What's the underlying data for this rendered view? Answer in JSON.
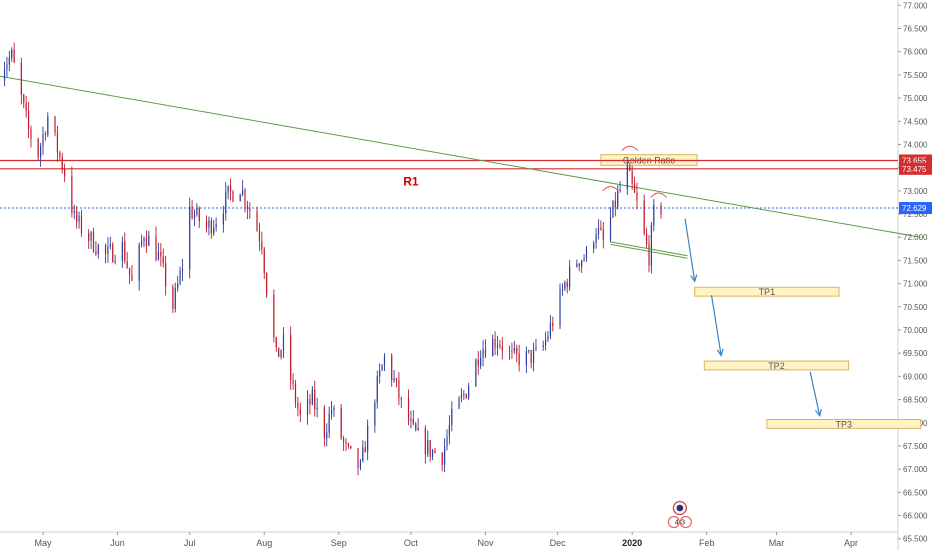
{
  "chart_data": {
    "type": "candlestick",
    "title": "",
    "xlabel": "",
    "ylabel": "",
    "ylim": [
      65.3,
      77.05
    ],
    "grid": false,
    "x_ticks": [
      {
        "label": "May",
        "date": "2019-05-01"
      },
      {
        "label": "Jun",
        "date": "2019-06-01"
      },
      {
        "label": "Jul",
        "date": "2019-07-01"
      },
      {
        "label": "Aug",
        "date": "2019-08-01"
      },
      {
        "label": "Sep",
        "date": "2019-09-01"
      },
      {
        "label": "Oct",
        "date": "2019-10-01"
      },
      {
        "label": "Nov",
        "date": "2019-11-01"
      },
      {
        "label": "Dec",
        "date": "2019-12-01"
      },
      {
        "label": "2020",
        "date": "2020-01-01"
      },
      {
        "label": "Feb",
        "date": "2020-02-01"
      },
      {
        "label": "Mar",
        "date": "2020-03-01"
      },
      {
        "label": "Apr",
        "date": "2020-04-01"
      }
    ],
    "y_ticks": [
      "65.500",
      "66.000",
      "66.500",
      "67.000",
      "67.500",
      "68.000",
      "68.500",
      "69.000",
      "69.500",
      "70.000",
      "70.500",
      "71.000",
      "71.500",
      "72.000",
      "72.500",
      "73.000",
      "73.500",
      "74.000",
      "74.500",
      "75.000",
      "75.500",
      "76.000",
      "76.500",
      "77.000"
    ],
    "price_path": [
      [
        "2019-04-12",
        75.6
      ],
      [
        "2019-04-18",
        75.9
      ],
      [
        "2019-04-25",
        74.3
      ],
      [
        "2019-04-29",
        73.8
      ],
      [
        "2019-05-03",
        74.6
      ],
      [
        "2019-05-07",
        73.9
      ],
      [
        "2019-05-10",
        73.4
      ],
      [
        "2019-05-14",
        72.4
      ],
      [
        "2019-05-20",
        72.0
      ],
      [
        "2019-05-27",
        71.6
      ],
      [
        "2019-06-03",
        71.8
      ],
      [
        "2019-06-07",
        71.0
      ],
      [
        "2019-06-12",
        72.1
      ],
      [
        "2019-06-18",
        71.6
      ],
      [
        "2019-06-24",
        70.5
      ],
      [
        "2019-06-28",
        71.4
      ],
      [
        "2019-07-01",
        72.6
      ],
      [
        "2019-07-08",
        72.2
      ],
      [
        "2019-07-12",
        72.4
      ],
      [
        "2019-07-17",
        72.9
      ],
      [
        "2019-07-22",
        73.1
      ],
      [
        "2019-07-26",
        72.6
      ],
      [
        "2019-07-31",
        71.9
      ],
      [
        "2019-08-02",
        70.9
      ],
      [
        "2019-08-06",
        69.4
      ],
      [
        "2019-08-09",
        69.7
      ],
      [
        "2019-08-13",
        68.7
      ],
      [
        "2019-08-16",
        68.1
      ],
      [
        "2019-08-21",
        68.5
      ],
      [
        "2019-08-26",
        67.8
      ],
      [
        "2019-08-29",
        68.3
      ],
      [
        "2019-09-04",
        67.4
      ],
      [
        "2019-09-10",
        67.0
      ],
      [
        "2019-09-16",
        68.6
      ],
      [
        "2019-09-20",
        69.4
      ],
      [
        "2019-09-24",
        68.9
      ],
      [
        "2019-09-27",
        68.4
      ],
      [
        "2019-10-02",
        67.8
      ],
      [
        "2019-10-09",
        67.4
      ],
      [
        "2019-10-14",
        67.3
      ],
      [
        "2019-10-18",
        68.1
      ],
      [
        "2019-10-24",
        68.7
      ],
      [
        "2019-10-30",
        69.6
      ],
      [
        "2019-11-06",
        69.8
      ],
      [
        "2019-11-12",
        69.4
      ],
      [
        "2019-11-18",
        69.4
      ],
      [
        "2019-11-24",
        69.5
      ],
      [
        "2019-11-29",
        70.2
      ],
      [
        "2019-12-04",
        71.0
      ],
      [
        "2019-12-09",
        71.5
      ],
      [
        "2019-12-13",
        71.6
      ],
      [
        "2019-12-17",
        72.2
      ],
      [
        "2019-12-20",
        71.9
      ],
      [
        "2019-12-26",
        72.9
      ],
      [
        "2019-12-30",
        73.4
      ],
      [
        "2020-01-03",
        72.7
      ],
      [
        "2020-01-06",
        72.0
      ],
      [
        "2020-01-08",
        71.6
      ],
      [
        "2020-01-10",
        72.5
      ],
      [
        "2020-01-13",
        72.63
      ]
    ],
    "horizontal_levels": [
      {
        "value": 73.655,
        "label": "73.655",
        "color": "#d32f2f"
      },
      {
        "value": 73.475,
        "label": "73.475",
        "color": "#d32f2f"
      },
      {
        "value": 72.629,
        "label": "72.629",
        "color": "#2962ff"
      }
    ],
    "trendline": {
      "from": {
        "date": "2019-04-10",
        "value": 75.5
      },
      "to": {
        "date": "2020-04-30",
        "value": 72.0
      },
      "color": "#5b9a4b"
    },
    "support_line": {
      "from": {
        "date": "2019-12-23",
        "value": 71.9
      },
      "to": {
        "date": "2020-01-24",
        "value": 71.6
      },
      "color": "#5b9a4b"
    },
    "zones": [
      {
        "label": "Golden Ratio",
        "from": "2019-12-19",
        "to": "2020-01-28",
        "top": 73.78,
        "bottom": 73.55
      },
      {
        "label": "TP1",
        "from": "2020-01-27",
        "to": "2020-03-27",
        "top": 70.92,
        "bottom": 70.73
      },
      {
        "label": "TP2",
        "from": "2020-01-31",
        "to": "2020-03-31",
        "top": 69.33,
        "bottom": 69.14
      },
      {
        "label": "TP3",
        "from": "2020-02-26",
        "to": "2020-04-30",
        "top": 68.07,
        "bottom": 67.88
      }
    ],
    "annotations": [
      {
        "label": "R1",
        "date": "2019-10-01",
        "value": 73.2,
        "color": "#cc0000"
      }
    ],
    "arcs": [
      {
        "date": "2019-12-23",
        "value": 73.06
      },
      {
        "date": "2019-12-31",
        "value": 73.93
      },
      {
        "date": "2020-01-12",
        "value": 72.92
      }
    ],
    "arrows": [
      {
        "from": {
          "date": "2020-01-23",
          "value": 72.4
        },
        "to": {
          "date": "2020-01-27",
          "value": 71.05
        }
      },
      {
        "from": {
          "date": "2020-02-03",
          "value": 70.75
        },
        "to": {
          "date": "2020-02-07",
          "value": 69.45
        }
      },
      {
        "from": {
          "date": "2020-03-15",
          "value": 69.1
        },
        "to": {
          "date": "2020-03-19",
          "value": 68.15
        }
      }
    ],
    "event_badge": {
      "text": "4 3",
      "date": "2020-01-20"
    },
    "colors": {
      "up": "#2a3f9e",
      "down": "#c2182b",
      "axis_text": "#555555",
      "zone_fill": "#fff3c4",
      "zone_border": "#d9b35a",
      "arrow": "#3b82c4"
    }
  }
}
